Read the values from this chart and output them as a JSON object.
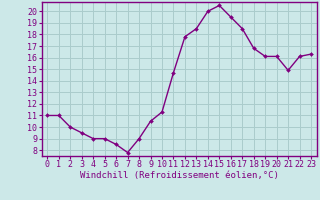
{
  "x": [
    0,
    1,
    2,
    3,
    4,
    5,
    6,
    7,
    8,
    9,
    10,
    11,
    12,
    13,
    14,
    15,
    16,
    17,
    18,
    19,
    20,
    21,
    22,
    23
  ],
  "y": [
    11,
    11,
    10,
    9.5,
    9,
    9,
    8.5,
    7.8,
    9,
    10.5,
    11.3,
    14.7,
    17.8,
    18.5,
    20.0,
    20.5,
    19.5,
    18.5,
    16.8,
    16.1,
    16.1,
    14.9,
    16.1,
    16.3
  ],
  "line_color": "#800080",
  "marker": "D",
  "marker_size": 2.0,
  "bg_color": "#cce8e8",
  "grid_color": "#aacccc",
  "axis_color": "#800080",
  "xlabel": "Windchill (Refroidissement éolien,°C)",
  "ylabel": "",
  "xlim": [
    -0.5,
    23.5
  ],
  "ylim": [
    7.5,
    20.8
  ],
  "yticks": [
    8,
    9,
    10,
    11,
    12,
    13,
    14,
    15,
    16,
    17,
    18,
    19,
    20
  ],
  "xticks": [
    0,
    1,
    2,
    3,
    4,
    5,
    6,
    7,
    8,
    9,
    10,
    11,
    12,
    13,
    14,
    15,
    16,
    17,
    18,
    19,
    20,
    21,
    22,
    23
  ],
  "xlabel_fontsize": 6.5,
  "tick_fontsize": 6.0,
  "line_width": 1.0
}
